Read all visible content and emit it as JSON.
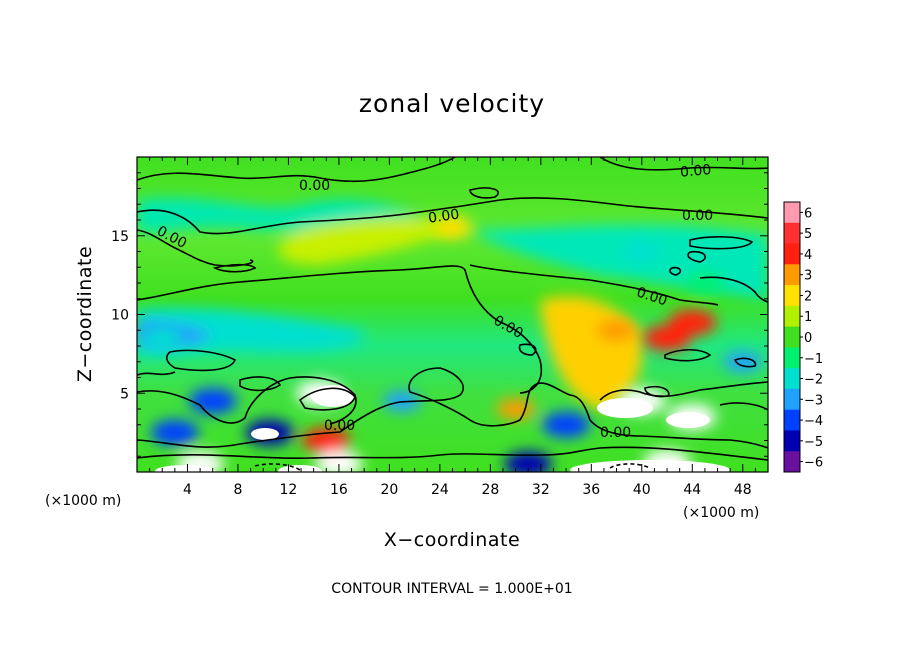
{
  "chart_data": {
    "type": "heatmap",
    "title": "zonal velocity",
    "xlabel": "X−coordinate",
    "ylabel": "Z−coordinate",
    "x_unit": "(×1000 m)",
    "y_unit": "(×1000 m)",
    "xlim": [
      0,
      50
    ],
    "ylim": [
      0,
      20
    ],
    "xticks": [
      4,
      8,
      12,
      16,
      20,
      24,
      28,
      32,
      36,
      40,
      44,
      48
    ],
    "yticks": [
      5,
      10,
      15
    ],
    "colorbar": {
      "min": -6,
      "max": 6,
      "labels": [
        "6",
        "5",
        "4",
        "3",
        "2",
        "1",
        "0",
        "−1",
        "−2",
        "−3",
        "−4",
        "−5",
        "−6"
      ],
      "colors": [
        "#ff9ab0",
        "#ff3030",
        "#ff2010",
        "#ff9a00",
        "#ffe000",
        "#b0f000",
        "#40e020",
        "#00f070",
        "#00e0d0",
        "#20a0ff",
        "#0040ff",
        "#0000b0",
        "#6a10a0"
      ]
    },
    "contour_labels": [
      "0.00",
      "0.00",
      "0.00",
      "0.00",
      "0.00",
      "0.00",
      "0.00",
      "0.00",
      "0.00"
    ],
    "contour_interval_note": "CONTOUR INTERVAL = 1.000E+01",
    "features": [
      {
        "x": 14.5,
        "z": 5.0,
        "value": 6.5
      },
      {
        "x": 10.5,
        "z": 2.5,
        "value": -5
      },
      {
        "x": 15,
        "z": 2,
        "value": 4.5
      },
      {
        "x": 40,
        "z": 4.5,
        "value": 6.5
      },
      {
        "x": 44,
        "z": 3.5,
        "value": 6.5
      },
      {
        "x": 42,
        "z": 8.5,
        "value": 4
      },
      {
        "x": 44,
        "z": 9.5,
        "value": 4
      },
      {
        "x": 3,
        "z": 2.5,
        "value": -4
      },
      {
        "x": 6,
        "z": 4.5,
        "value": -4
      },
      {
        "x": 2,
        "z": 8.5,
        "value": -2
      },
      {
        "x": 34,
        "z": 3,
        "value": -4
      },
      {
        "x": 48,
        "z": 7,
        "value": -3
      },
      {
        "x": 40,
        "z": 14,
        "value": -2
      },
      {
        "x": 25,
        "z": 15.5,
        "value": 2
      },
      {
        "x": 38,
        "z": 9,
        "value": 3
      },
      {
        "x": 30,
        "z": 4,
        "value": 3
      },
      {
        "x": 21,
        "z": 4.5,
        "value": -3
      },
      {
        "x": 42,
        "z": 0.6,
        "value": 6.5
      },
      {
        "x": 5,
        "z": 0.5,
        "value": 6.5
      },
      {
        "x": 16,
        "z": 0.5,
        "value": 6.5
      },
      {
        "x": 31,
        "z": 0.5,
        "value": -5
      },
      {
        "x": 45,
        "z": 12,
        "value": -1
      }
    ]
  }
}
